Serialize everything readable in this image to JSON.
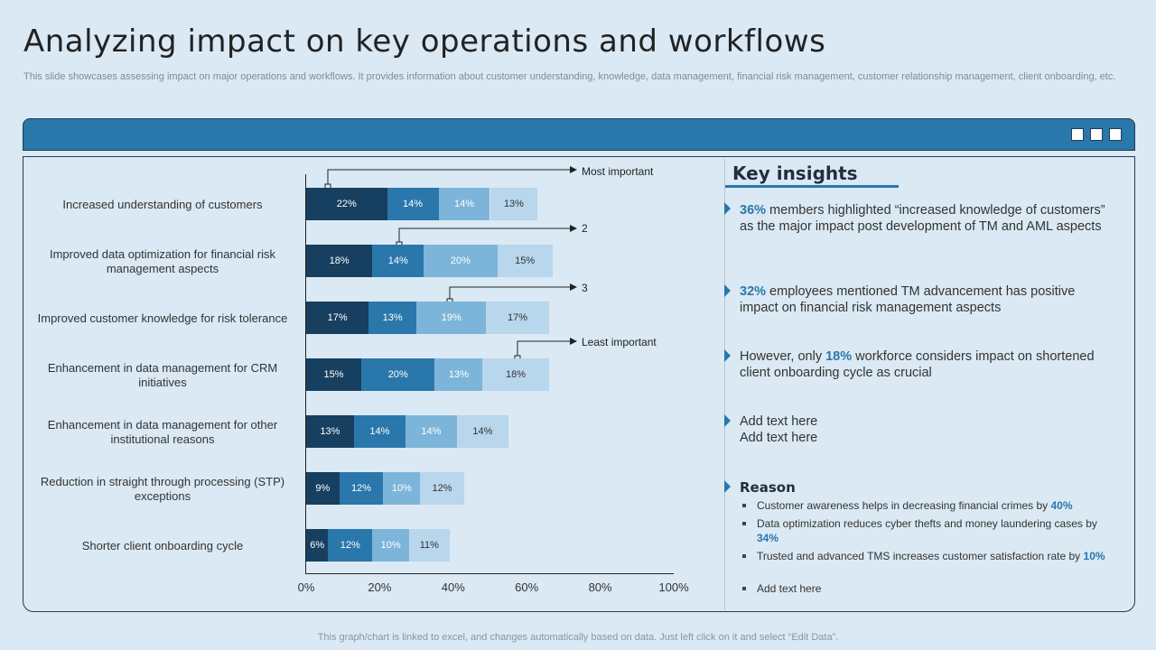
{
  "title": "Analyzing impact on key operations and workflows",
  "subtitle": "This slide showcases assessing impact on major operations and workflows. It provides information about customer understanding, knowledge, data management, financial risk management, customer relationship management, client onboarding, etc.",
  "chart_data": {
    "type": "bar",
    "orientation": "horizontal",
    "stacked": true,
    "categories": [
      "Increased understanding  of customers",
      "Improved data optimization for financial risk management aspects",
      "Improved customer knowledge for risk tolerance",
      "Enhancement in data management for CRM initiatives",
      "Enhancement in data management for other institutional reasons",
      "Reduction in straight through processing (STP) exceptions",
      "Shorter client onboarding cycle"
    ],
    "series": [
      {
        "name": "Most important",
        "color": "#173f5f",
        "values": [
          22,
          18,
          17,
          15,
          13,
          9,
          6
        ]
      },
      {
        "name": "2",
        "color": "#2a77ab",
        "values": [
          14,
          14,
          13,
          20,
          14,
          12,
          12
        ]
      },
      {
        "name": "3",
        "color": "#7db5da",
        "values": [
          14,
          20,
          19,
          13,
          14,
          10,
          10
        ]
      },
      {
        "name": "Least important",
        "color": "#b8d6ec",
        "values": [
          13,
          15,
          17,
          18,
          14,
          12,
          11
        ]
      }
    ],
    "value_suffix": "%",
    "xlim": [
      0,
      100
    ],
    "xticks": [
      "0%",
      "20%",
      "40%",
      "60%",
      "80%",
      "100%"
    ],
    "annotations": [
      "Most important",
      "2",
      "3",
      "Least important"
    ]
  },
  "insights": {
    "title": "Key insights",
    "items": [
      {
        "hl": "36%",
        "pre": "",
        "post": " members highlighted “increased knowledge of customers” as the major impact post development of TM and AML aspects"
      },
      {
        "hl": "32%",
        "pre": "",
        "post": " employees mentioned TM advancement has positive impact on financial risk management aspects"
      },
      {
        "hl": "18%",
        "pre": "However, only ",
        "post": " workforce considers impact on shortened client onboarding cycle as crucial"
      },
      {
        "hl": "",
        "pre": "Add text here\nAdd text here",
        "post": ""
      }
    ],
    "reason_title": "Reason",
    "reasons": [
      {
        "text": "Customer awareness helps in decreasing financial crimes by ",
        "hl": "40%"
      },
      {
        "text": "Data optimization reduces cyber thefts and money laundering cases by ",
        "hl": "34%"
      },
      {
        "text": "Trusted and advanced TMS increases customer satisfaction rate by ",
        "hl": "10%"
      },
      {
        "text": "Add text here",
        "hl": ""
      }
    ]
  },
  "footer": "This graph/chart is linked to excel,  and changes automatically based on data. Just left click on it and select “Edit Data”."
}
